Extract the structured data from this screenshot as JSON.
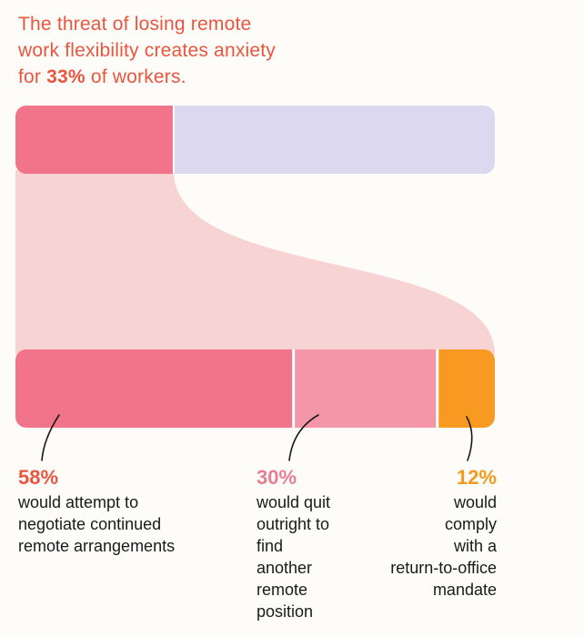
{
  "headline": {
    "line1": "The threat of losing remote",
    "line2": "work flexibility creates anxiety",
    "line3_pre": "for ",
    "line3_pct": "33%",
    "line3_post": " of workers."
  },
  "colors": {
    "anxious": "#f2748a",
    "not_anxious": "#dcd8ef",
    "flow": "#f7d3d4",
    "negotiate": "#f2748a",
    "quit": "#f596a8",
    "comply": "#f89a22",
    "headline": "#e8563f",
    "pct_58": "#e8563f",
    "pct_30": "#e77e93",
    "pct_12": "#f39a1c"
  },
  "chart_data": {
    "type": "bar",
    "top_bar": {
      "segments": [
        {
          "value": 33
        },
        {
          "value": 67
        }
      ]
    },
    "bottom_bar": {
      "segments": [
        {
          "value": 58,
          "label": "58%",
          "text": [
            "would attempt to",
            "negotiate continued",
            "remote arrangements"
          ]
        },
        {
          "value": 30,
          "label": "30%",
          "text": [
            "would quit",
            "outright to",
            "find",
            "another",
            "remote",
            "position"
          ]
        },
        {
          "value": 12,
          "label": "12%",
          "text": [
            "would",
            "comply",
            "with a",
            "return-to-office",
            "mandate"
          ]
        }
      ]
    }
  }
}
